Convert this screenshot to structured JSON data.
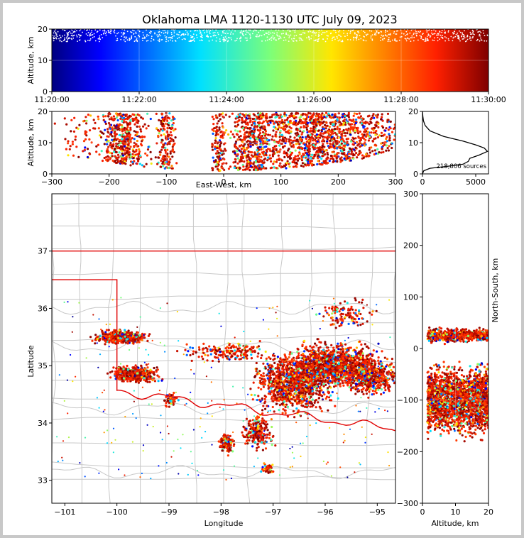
{
  "chart_data": [
    {
      "type": "scatter",
      "panel": "altitude-vs-time",
      "title": "Oklahoma LMA 1120-1130 UTC July 09, 2023",
      "ylabel": "Altitude, km",
      "xlim": [
        "11:20:00",
        "11:30:00"
      ],
      "ylim": [
        0,
        20
      ],
      "xticks": [
        "11:20:00",
        "11:22:00",
        "11:24:00",
        "11:26:00",
        "11:28:00",
        "11:30:00"
      ],
      "yticks": [
        0,
        10,
        20
      ],
      "colormap": "jet",
      "color_by": "time",
      "grid": true
    },
    {
      "type": "scatter",
      "panel": "altitude-vs-east-west",
      "xlabel": "East-West, km",
      "ylabel": "Altitude, km",
      "xlim": [
        -300,
        300
      ],
      "ylim": [
        0,
        20
      ],
      "xticks": [
        -300,
        -200,
        -100,
        0,
        100,
        200,
        300
      ],
      "yticks": [
        0,
        10,
        20
      ],
      "grid": true
    },
    {
      "type": "line",
      "panel": "altitude-histogram",
      "annotation": "218,806 sources",
      "xlim": [
        0,
        6200
      ],
      "ylim": [
        0,
        20
      ],
      "xticks": [
        0,
        5000
      ],
      "yticks": [
        0,
        10,
        20
      ],
      "profile": [
        {
          "count": 0,
          "alt": 0.0
        },
        {
          "count": 120,
          "alt": 1.0
        },
        {
          "count": 700,
          "alt": 1.8
        },
        {
          "count": 2300,
          "alt": 2.4
        },
        {
          "count": 3800,
          "alt": 3.1
        },
        {
          "count": 4300,
          "alt": 4.0
        },
        {
          "count": 4450,
          "alt": 5.0
        },
        {
          "count": 5300,
          "alt": 6.0
        },
        {
          "count": 6100,
          "alt": 7.2
        },
        {
          "count": 5800,
          "alt": 8.3
        },
        {
          "count": 5000,
          "alt": 9.3
        },
        {
          "count": 3800,
          "alt": 10.5
        },
        {
          "count": 2000,
          "alt": 12.0
        },
        {
          "count": 700,
          "alt": 13.8
        },
        {
          "count": 250,
          "alt": 15.5
        },
        {
          "count": 90,
          "alt": 17.0
        },
        {
          "count": 30,
          "alt": 18.5
        },
        {
          "count": 5,
          "alt": 20.0
        }
      ]
    },
    {
      "type": "scatter",
      "panel": "plan-view-map",
      "xlabel": "Longitude",
      "ylabel": "Latitude",
      "xlim": [
        -101.25,
        -94.65
      ],
      "ylim": [
        32.6,
        38.0
      ],
      "xticks": [
        -101,
        -100,
        -99,
        -98,
        -97,
        -96,
        -95
      ],
      "yticks": [
        33,
        34,
        35,
        36,
        37
      ],
      "grid": true
    },
    {
      "type": "scatter",
      "panel": "north-south-vs-altitude",
      "xlabel": "Altitude, km",
      "ylabel": "North-South, km",
      "xlim": [
        0,
        20
      ],
      "ylim": [
        -300,
        300
      ],
      "xticks": [
        0,
        10,
        20
      ],
      "yticks": [
        -300,
        -200,
        -100,
        0,
        100,
        200,
        300
      ],
      "grid": true
    }
  ]
}
